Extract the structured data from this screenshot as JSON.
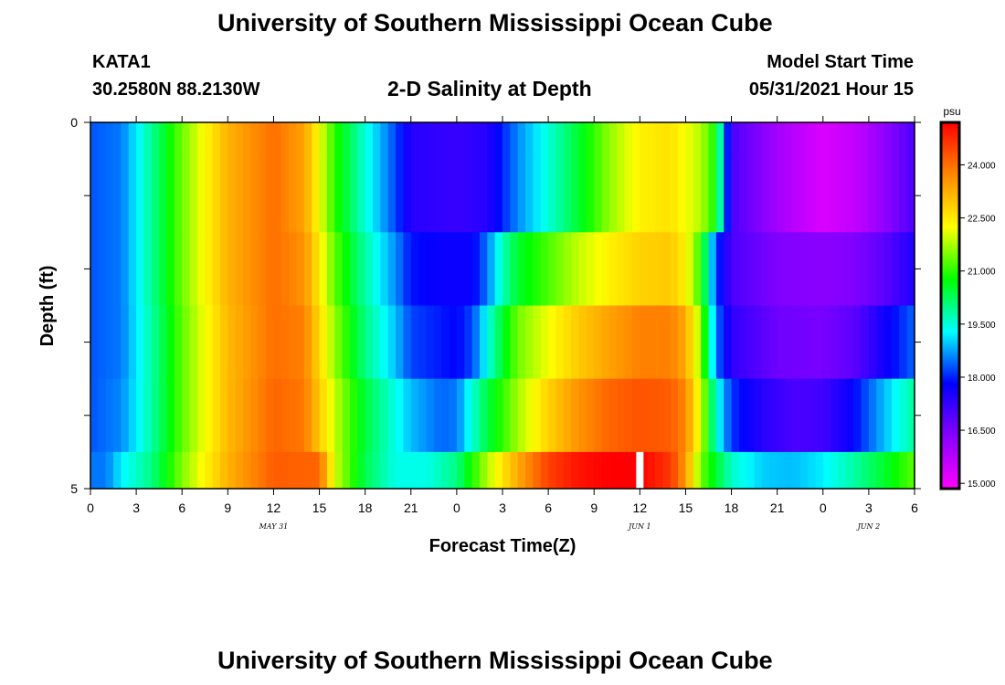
{
  "page": {
    "title_top": "University of Southern Mississippi Ocean Cube",
    "title_bottom": "University of Southern Mississippi Ocean Cube",
    "station_id": "KATA1",
    "station_coords": "30.2580N  88.2130W",
    "plot_title": "2-D Salinity at Depth",
    "model_start_label": "Model Start Time",
    "model_start_value": "05/31/2021 Hour 15"
  },
  "chart_data": {
    "type": "heatmap",
    "title": "2-D Salinity at Depth",
    "xlabel": "Forecast Time(Z)",
    "ylabel": "Depth (ft)",
    "x_hours": [
      0,
      54
    ],
    "x_ticks": [
      "0",
      "3",
      "6",
      "9",
      "12",
      "15",
      "18",
      "21",
      "0",
      "3",
      "6",
      "9",
      "12",
      "15",
      "18",
      "21",
      "0",
      "3",
      "6"
    ],
    "date_labels": [
      {
        "text": "MAY 31",
        "hour": 12
      },
      {
        "text": "JUN 1",
        "hour": 36
      },
      {
        "text": "JUN 2",
        "hour": 51
      }
    ],
    "y_ticks": [
      "0",
      "5"
    ],
    "ylim": [
      0,
      5
    ],
    "depth_layers": 5,
    "colorbar": {
      "unit": "psu",
      "min": 14.85,
      "max": 25.2,
      "ticks": [
        "15.000",
        "16.500",
        "18.000",
        "19.500",
        "21.000",
        "22.500",
        "24.000"
      ]
    },
    "colors": {
      "scale": [
        "#ff00ff",
        "#8800ff",
        "#0000ff",
        "#00ffff",
        "#00ff00",
        "#ffff00",
        "#ff8800",
        "#ff0000"
      ],
      "missing": "#ffffff"
    },
    "missing_hour": 36,
    "salinity": [
      {
        "depth_index": 0,
        "hours": [
          0,
          2,
          4,
          6,
          9,
          12,
          14,
          16,
          18,
          20,
          21,
          24,
          26,
          28,
          30,
          32,
          34,
          36,
          38,
          40,
          41,
          42,
          45,
          48,
          50,
          52,
          54
        ],
        "values": [
          18.3,
          18.5,
          19.9,
          21.4,
          23.2,
          24.0,
          23.4,
          21.0,
          19.5,
          18.2,
          17.4,
          17.2,
          17.4,
          18.6,
          19.5,
          20.5,
          21.6,
          22.4,
          22.6,
          21.8,
          20.8,
          17.0,
          16.0,
          15.3,
          15.6,
          16.2,
          17.0
        ]
      },
      {
        "depth_index": 1,
        "hours": [
          0,
          2,
          4,
          6,
          9,
          12,
          14,
          16,
          18,
          20,
          21,
          23,
          25,
          26,
          27,
          28,
          30,
          32,
          34,
          36,
          38,
          39,
          40,
          41,
          42,
          45,
          48,
          50,
          52,
          54
        ],
        "values": [
          18.3,
          18.5,
          19.9,
          21.4,
          23.2,
          24.0,
          23.6,
          21.3,
          19.8,
          18.6,
          17.9,
          17.7,
          17.7,
          18.5,
          19.7,
          20.5,
          21.2,
          21.9,
          22.4,
          22.8,
          22.9,
          22.4,
          21.0,
          18.2,
          17.0,
          16.4,
          16.3,
          16.4,
          16.8,
          17.5
        ]
      },
      {
        "depth_index": 2,
        "hours": [
          0,
          2,
          4,
          6,
          9,
          12,
          14,
          16,
          18,
          20,
          21,
          24,
          25,
          26,
          27,
          28,
          30,
          32,
          34,
          36,
          38,
          39,
          40,
          41,
          42,
          45,
          48,
          50,
          52,
          54
        ],
        "values": [
          18.3,
          18.5,
          19.8,
          21.3,
          23.1,
          24.0,
          23.8,
          21.6,
          20.0,
          18.9,
          18.2,
          17.8,
          18.2,
          19.4,
          20.5,
          21.4,
          22.2,
          22.9,
          23.4,
          23.8,
          23.8,
          23.3,
          21.6,
          18.5,
          17.3,
          16.6,
          16.5,
          16.8,
          17.6,
          18.4
        ]
      },
      {
        "depth_index": 3,
        "hours": [
          0,
          2,
          4,
          6,
          9,
          12,
          14,
          16,
          18,
          20,
          21,
          23,
          24,
          25,
          26,
          28,
          30,
          32,
          34,
          36,
          38,
          39,
          40,
          41,
          42,
          44,
          46,
          48,
          50,
          52,
          54
        ],
        "values": [
          18.3,
          18.6,
          19.8,
          21.3,
          23.1,
          24.1,
          23.9,
          21.9,
          20.4,
          19.4,
          18.9,
          18.4,
          18.5,
          19.5,
          20.4,
          21.7,
          22.8,
          23.6,
          24.1,
          24.3,
          24.2,
          23.7,
          22.0,
          19.5,
          18.1,
          17.4,
          17.0,
          17.1,
          17.8,
          18.9,
          19.9
        ]
      },
      {
        "depth_index": 4,
        "hours": [
          0,
          1,
          2,
          4,
          6,
          9,
          12,
          15,
          16,
          18,
          20,
          22,
          24,
          26,
          28,
          30,
          32,
          34,
          36,
          38,
          39,
          40,
          41,
          42,
          43,
          44,
          46,
          48,
          50,
          52,
          54
        ],
        "values": [
          18.5,
          18.5,
          19.2,
          20.0,
          21.5,
          23.2,
          24.2,
          24.1,
          22.0,
          20.3,
          19.4,
          19.4,
          20.0,
          21.8,
          23.3,
          24.5,
          25.0,
          25.2,
          25.2,
          24.6,
          23.5,
          21.4,
          20.5,
          19.6,
          19.3,
          19.0,
          18.9,
          19.2,
          19.8,
          20.5,
          21.3
        ]
      }
    ]
  }
}
